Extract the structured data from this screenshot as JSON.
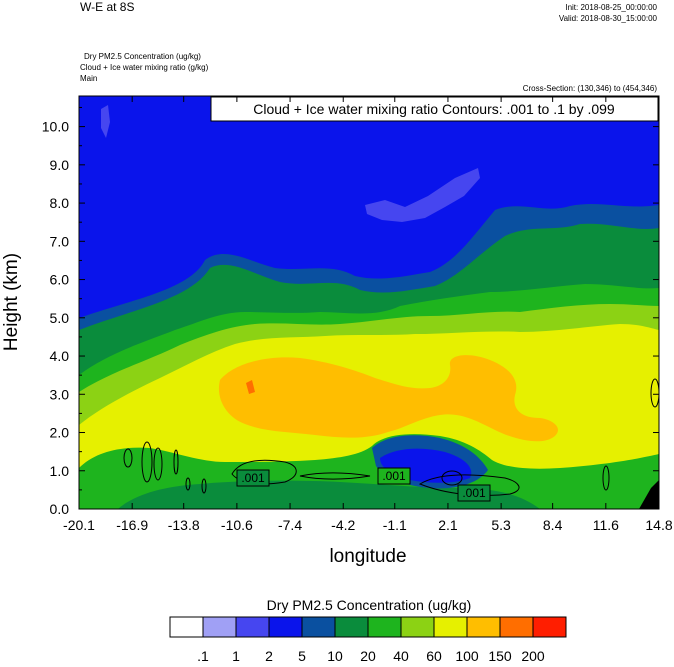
{
  "header": {
    "title": "W-E at 8S",
    "init": "Init: 2018-08-25_00:00:00",
    "valid": "Valid: 2018-08-30_15:00:00",
    "field1": "Dry PM2.5 Concentration   (ug/kg)",
    "field2": "Cloud + Ice water mixing ratio   (g/kg)",
    "field3": "Main",
    "cross_section": "Cross-Section: (130,346) to (454,346)"
  },
  "chart_data": {
    "type": "heatmap",
    "title": "W-E at 8S",
    "xlabel": "longitude",
    "ylabel": "Height (km)",
    "x_ticks": [
      "-20.1",
      "-16.9",
      "-13.8",
      "-10.6",
      "-7.4",
      "-4.2",
      "-1.1",
      "2.1",
      "5.3",
      "8.4",
      "11.6",
      "14.8"
    ],
    "y_ticks": [
      "0.0",
      "1.0",
      "2.0",
      "3.0",
      "4.0",
      "5.0",
      "6.0",
      "7.0",
      "8.0",
      "9.0",
      "10.0"
    ],
    "xlim": [
      -20.1,
      14.8
    ],
    "ylim": [
      0.0,
      10.8
    ],
    "contour_info": "Cloud + Ice water mixing ratio Contours: .001 to .1 by .099",
    "contour_labels": [
      ".001",
      ".001",
      ".001"
    ],
    "colorbar_title": "Dry PM2.5 Concentration  (ug/kg)",
    "colorbar_levels": [
      ".1",
      "1",
      "2",
      "5",
      "10",
      "20",
      "40",
      "60",
      "100",
      "150",
      "200"
    ],
    "colorbar_colors": [
      "#ffffff",
      "#a0a0f5",
      "#4646f0",
      "#0a14eb",
      "#0a50a0",
      "#0a8c3c",
      "#1eb41e",
      "#8cd214",
      "#e6f000",
      "#ffbe00",
      "#ff6e00",
      "#ff1e00"
    ]
  }
}
